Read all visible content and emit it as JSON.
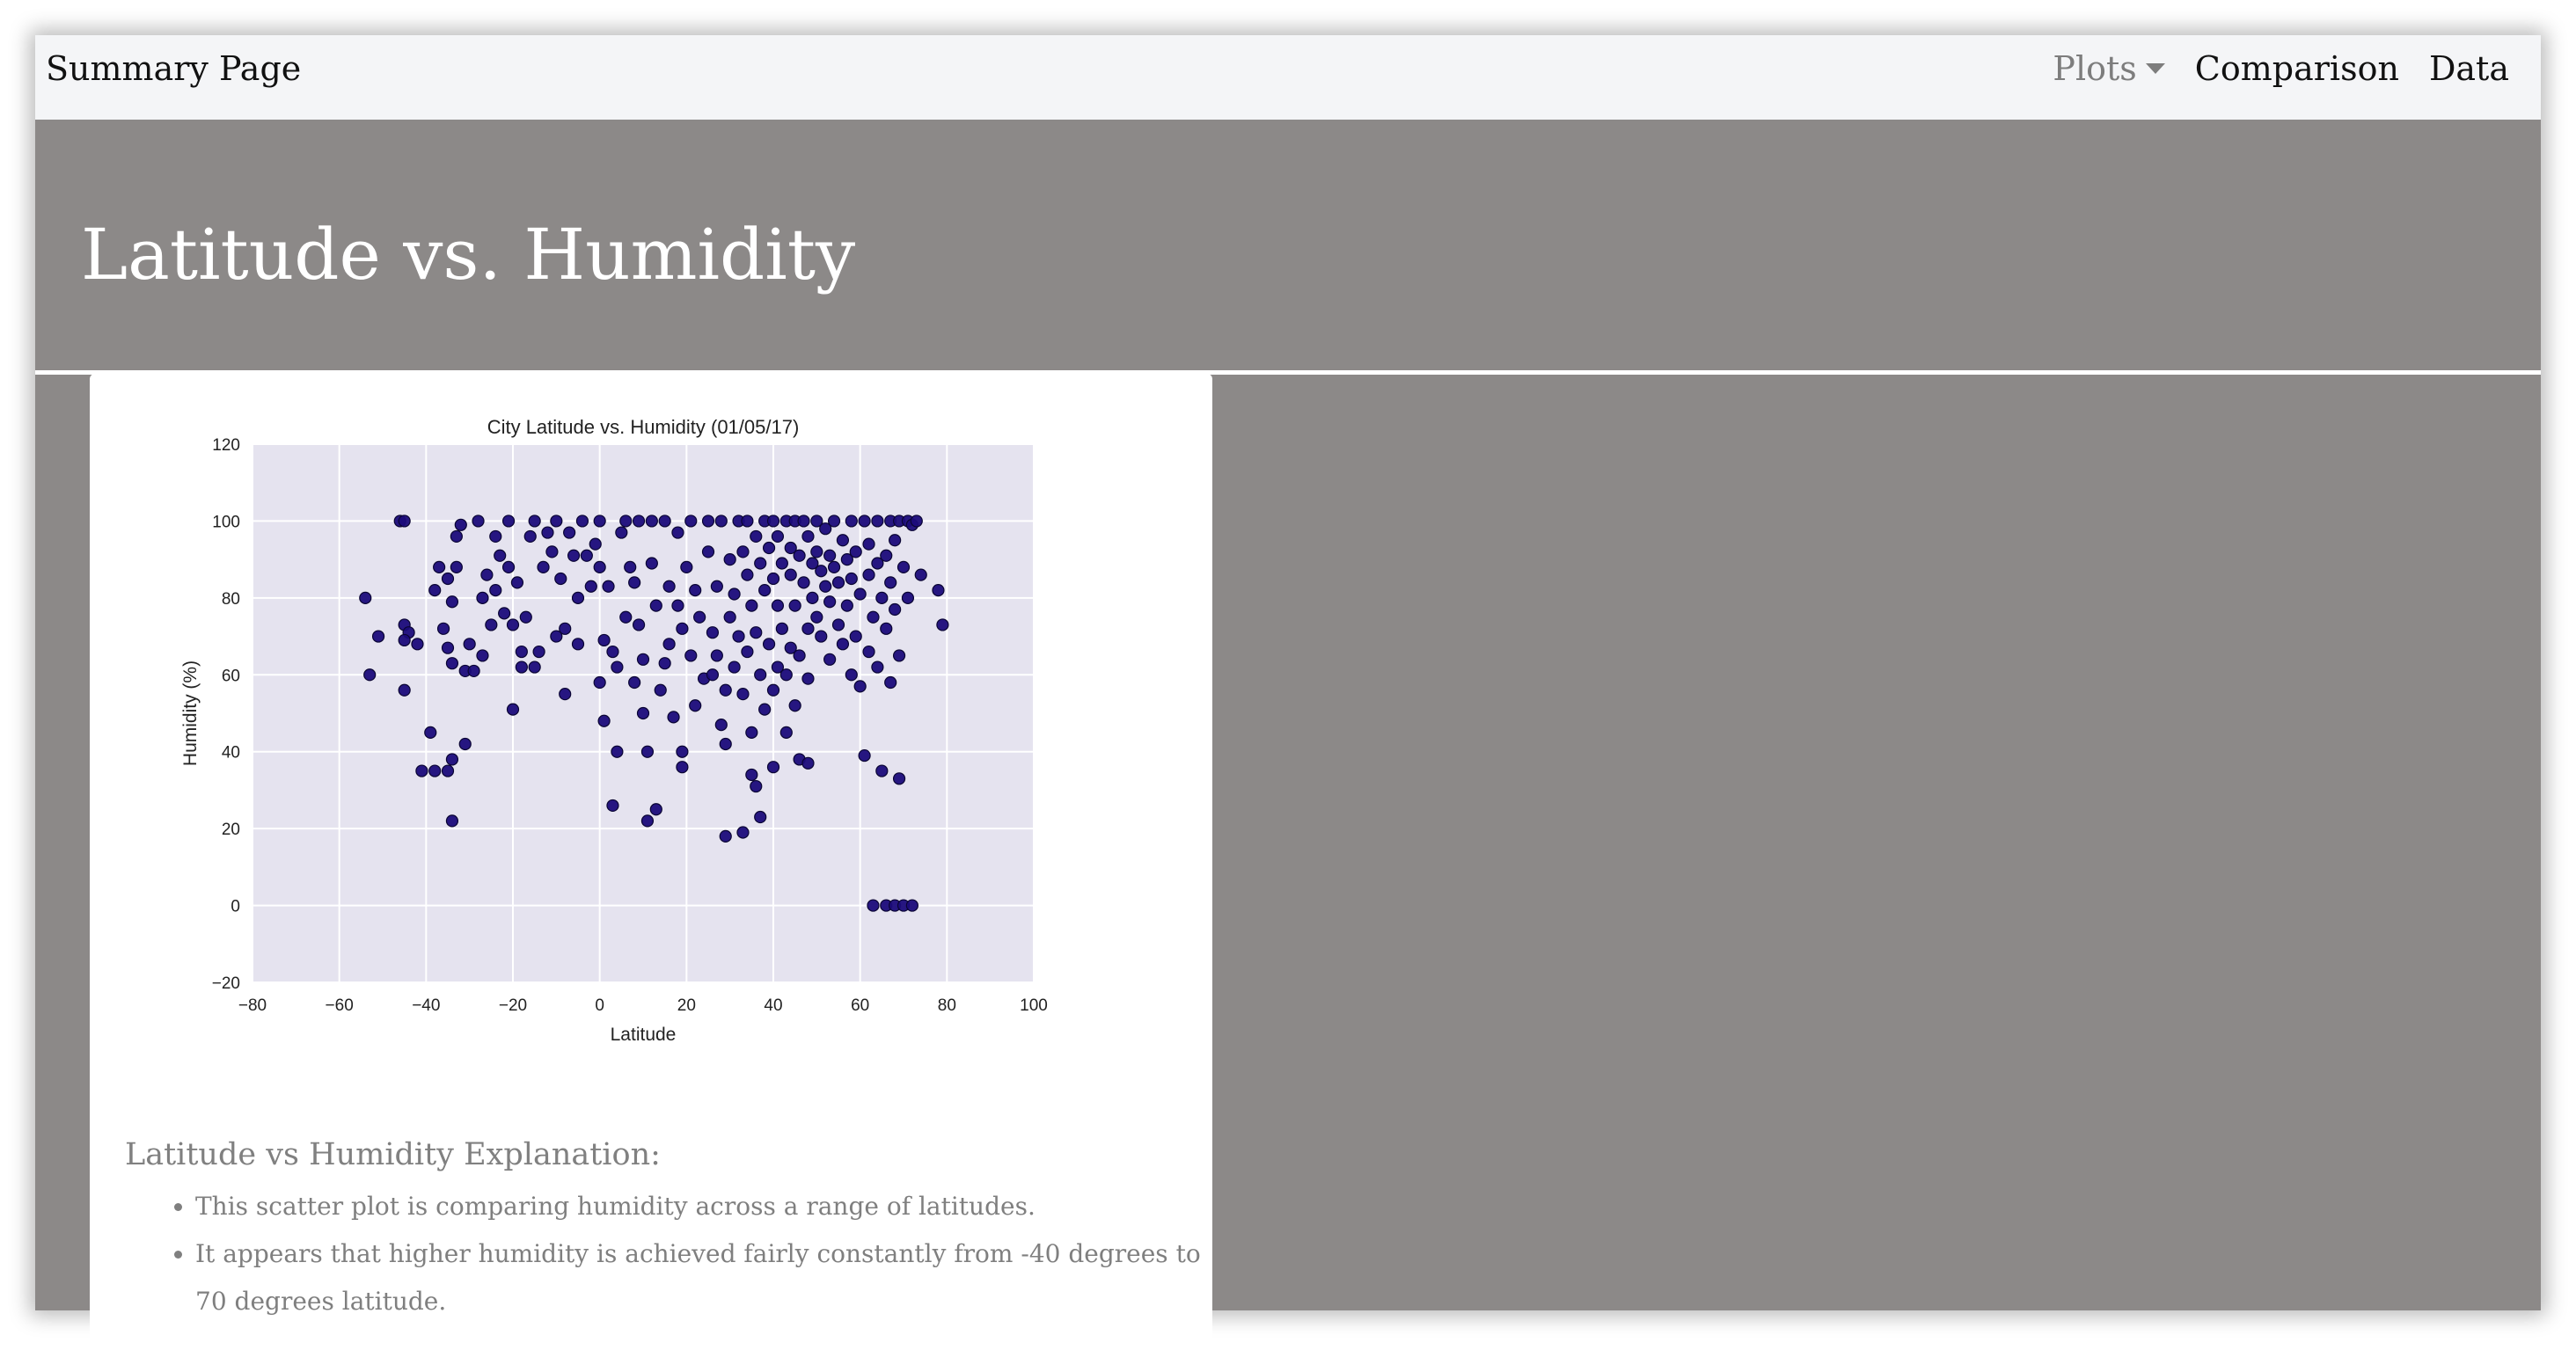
{
  "navbar": {
    "brand": "Summary Page",
    "links": [
      "Plots",
      "Comparison",
      "Data"
    ]
  },
  "header": {
    "title": "Latitude vs. Humidity"
  },
  "explanation": {
    "title": "Latitude vs Humidity Explanation:",
    "bullets": [
      "This scatter plot is comparing humidity across a range of latitudes.",
      "It appears that higher humidity is achieved fairly constantly from -40 degrees to 70 degrees latitude."
    ]
  },
  "colors": {
    "marker": "#1b0b7a",
    "plot_bg": "#e5e3ef"
  },
  "chart_data": {
    "type": "scatter",
    "title": "City Latitude vs. Humidity (01/05/17)",
    "xlabel": "Latitude",
    "ylabel": "Humidity (%)",
    "xlim": [
      -80,
      100
    ],
    "ylim": [
      -20,
      120
    ],
    "xticks": [
      -80,
      -60,
      -40,
      -20,
      0,
      20,
      40,
      60,
      80,
      100
    ],
    "yticks": [
      -20,
      0,
      20,
      40,
      60,
      80,
      100,
      120
    ],
    "grid": true,
    "series": [
      {
        "points": [
          [
            -54,
            80
          ],
          [
            -53,
            60
          ],
          [
            -51,
            70
          ],
          [
            -46,
            100
          ],
          [
            -45,
            100
          ],
          [
            -45,
            73
          ],
          [
            -44,
            71
          ],
          [
            -45,
            69
          ],
          [
            -45,
            56
          ],
          [
            -42,
            68
          ],
          [
            -41,
            35
          ],
          [
            -39,
            45
          ],
          [
            -38,
            35
          ],
          [
            -38,
            82
          ],
          [
            -37,
            88
          ],
          [
            -36,
            72
          ],
          [
            -35,
            67
          ],
          [
            -35,
            85
          ],
          [
            -34,
            79
          ],
          [
            -34,
            63
          ],
          [
            -35,
            35
          ],
          [
            -34,
            38
          ],
          [
            -34,
            22
          ],
          [
            -33,
            88
          ],
          [
            -33,
            96
          ],
          [
            -32,
            99
          ],
          [
            -31,
            42
          ],
          [
            -31,
            61
          ],
          [
            -30,
            68
          ],
          [
            -29,
            61
          ],
          [
            -28,
            100
          ],
          [
            -27,
            65
          ],
          [
            -27,
            80
          ],
          [
            -26,
            86
          ],
          [
            -25,
            73
          ],
          [
            -24,
            96
          ],
          [
            -24,
            82
          ],
          [
            -23,
            91
          ],
          [
            -22,
            76
          ],
          [
            -21,
            100
          ],
          [
            -21,
            88
          ],
          [
            -20,
            73
          ],
          [
            -20,
            51
          ],
          [
            -19,
            84
          ],
          [
            -18,
            66
          ],
          [
            -18,
            62
          ],
          [
            -17,
            75
          ],
          [
            -16,
            96
          ],
          [
            -15,
            100
          ],
          [
            -15,
            62
          ],
          [
            -14,
            66
          ],
          [
            -13,
            88
          ],
          [
            -12,
            97
          ],
          [
            -11,
            92
          ],
          [
            -10,
            100
          ],
          [
            -10,
            70
          ],
          [
            -9,
            85
          ],
          [
            -8,
            72
          ],
          [
            -8,
            55
          ],
          [
            -7,
            97
          ],
          [
            -6,
            91
          ],
          [
            -5,
            80
          ],
          [
            -5,
            68
          ],
          [
            -4,
            100
          ],
          [
            -3,
            91
          ],
          [
            -2,
            83
          ],
          [
            -1,
            94
          ],
          [
            0,
            100
          ],
          [
            0,
            88
          ],
          [
            0,
            58
          ],
          [
            1,
            69
          ],
          [
            1,
            48
          ],
          [
            2,
            83
          ],
          [
            3,
            66
          ],
          [
            3,
            26
          ],
          [
            4,
            40
          ],
          [
            4,
            62
          ],
          [
            5,
            97
          ],
          [
            6,
            100
          ],
          [
            6,
            75
          ],
          [
            7,
            88
          ],
          [
            8,
            84
          ],
          [
            8,
            58
          ],
          [
            9,
            100
          ],
          [
            9,
            73
          ],
          [
            10,
            64
          ],
          [
            10,
            50
          ],
          [
            11,
            40
          ],
          [
            11,
            22
          ],
          [
            12,
            100
          ],
          [
            12,
            89
          ],
          [
            13,
            78
          ],
          [
            13,
            25
          ],
          [
            14,
            56
          ],
          [
            15,
            100
          ],
          [
            15,
            63
          ],
          [
            16,
            83
          ],
          [
            16,
            68
          ],
          [
            17,
            49
          ],
          [
            18,
            97
          ],
          [
            18,
            78
          ],
          [
            19,
            72
          ],
          [
            19,
            40
          ],
          [
            19,
            36
          ],
          [
            20,
            88
          ],
          [
            21,
            100
          ],
          [
            21,
            65
          ],
          [
            22,
            82
          ],
          [
            22,
            52
          ],
          [
            23,
            75
          ],
          [
            24,
            59
          ],
          [
            25,
            100
          ],
          [
            25,
            92
          ],
          [
            26,
            71
          ],
          [
            26,
            60
          ],
          [
            27,
            83
          ],
          [
            27,
            65
          ],
          [
            28,
            100
          ],
          [
            28,
            47
          ],
          [
            29,
            56
          ],
          [
            29,
            42
          ],
          [
            29,
            18
          ],
          [
            30,
            90
          ],
          [
            30,
            75
          ],
          [
            31,
            81
          ],
          [
            31,
            62
          ],
          [
            32,
            100
          ],
          [
            32,
            70
          ],
          [
            33,
            92
          ],
          [
            33,
            55
          ],
          [
            33,
            19
          ],
          [
            34,
            100
          ],
          [
            34,
            86
          ],
          [
            34,
            66
          ],
          [
            35,
            78
          ],
          [
            35,
            45
          ],
          [
            35,
            34
          ],
          [
            36,
            96
          ],
          [
            36,
            71
          ],
          [
            36,
            31
          ],
          [
            37,
            89
          ],
          [
            37,
            60
          ],
          [
            37,
            23
          ],
          [
            38,
            100
          ],
          [
            38,
            82
          ],
          [
            38,
            51
          ],
          [
            39,
            93
          ],
          [
            39,
            68
          ],
          [
            40,
            100
          ],
          [
            40,
            85
          ],
          [
            40,
            56
          ],
          [
            40,
            36
          ],
          [
            41,
            96
          ],
          [
            41,
            78
          ],
          [
            41,
            62
          ],
          [
            42,
            89
          ],
          [
            42,
            72
          ],
          [
            43,
            100
          ],
          [
            43,
            60
          ],
          [
            43,
            45
          ],
          [
            44,
            93
          ],
          [
            44,
            86
          ],
          [
            44,
            67
          ],
          [
            45,
            100
          ],
          [
            45,
            78
          ],
          [
            45,
            52
          ],
          [
            46,
            91
          ],
          [
            46,
            65
          ],
          [
            46,
            38
          ],
          [
            47,
            100
          ],
          [
            47,
            84
          ],
          [
            48,
            96
          ],
          [
            48,
            72
          ],
          [
            48,
            59
          ],
          [
            48,
            37
          ],
          [
            49,
            89
          ],
          [
            49,
            80
          ],
          [
            50,
            100
          ],
          [
            50,
            92
          ],
          [
            50,
            75
          ],
          [
            51,
            87
          ],
          [
            51,
            70
          ],
          [
            52,
            98
          ],
          [
            52,
            83
          ],
          [
            53,
            91
          ],
          [
            53,
            79
          ],
          [
            53,
            64
          ],
          [
            54,
            100
          ],
          [
            54,
            88
          ],
          [
            55,
            73
          ],
          [
            55,
            84
          ],
          [
            56,
            95
          ],
          [
            56,
            68
          ],
          [
            57,
            90
          ],
          [
            57,
            78
          ],
          [
            58,
            100
          ],
          [
            58,
            60
          ],
          [
            58,
            85
          ],
          [
            59,
            92
          ],
          [
            59,
            70
          ],
          [
            60,
            81
          ],
          [
            60,
            57
          ],
          [
            61,
            100
          ],
          [
            61,
            39
          ],
          [
            62,
            94
          ],
          [
            62,
            66
          ],
          [
            62,
            86
          ],
          [
            63,
            75
          ],
          [
            63,
            0
          ],
          [
            64,
            100
          ],
          [
            64,
            89
          ],
          [
            64,
            62
          ],
          [
            65,
            80
          ],
          [
            65,
            35
          ],
          [
            66,
            91
          ],
          [
            66,
            72
          ],
          [
            66,
            0
          ],
          [
            67,
            100
          ],
          [
            67,
            84
          ],
          [
            67,
            58
          ],
          [
            68,
            95
          ],
          [
            68,
            77
          ],
          [
            68,
            0
          ],
          [
            69,
            100
          ],
          [
            69,
            65
          ],
          [
            69,
            33
          ],
          [
            70,
            88
          ],
          [
            70,
            0
          ],
          [
            71,
            100
          ],
          [
            71,
            80
          ],
          [
            72,
            99
          ],
          [
            72,
            0
          ],
          [
            73,
            100
          ],
          [
            74,
            86
          ],
          [
            78,
            82
          ],
          [
            79,
            73
          ]
        ]
      }
    ]
  }
}
